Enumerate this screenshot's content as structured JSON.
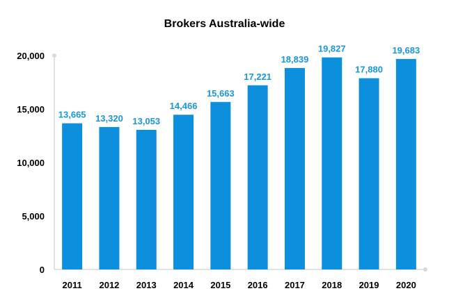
{
  "chart_data": {
    "type": "bar",
    "title": "Brokers Australia-wide",
    "xlabel": "",
    "ylabel": "",
    "categories": [
      "2011",
      "2012",
      "2013",
      "2014",
      "2015",
      "2016",
      "2017",
      "2018",
      "2019",
      "2020"
    ],
    "values": [
      13665,
      13320,
      13053,
      14466,
      15663,
      17221,
      18839,
      19827,
      17880,
      19683
    ],
    "data_labels": [
      "13,665",
      "13,320",
      "13,053",
      "14,466",
      "15,663",
      "17,221",
      "18,839",
      "19,827",
      "17,880",
      "19,683"
    ],
    "ylim": [
      0,
      20000
    ],
    "yticks": [
      0,
      5000,
      10000,
      15000,
      20000
    ],
    "ytick_labels": [
      "0",
      "5,000",
      "10,000",
      "15,000",
      "20,000"
    ],
    "grid": false,
    "legend": "none",
    "colors": {
      "bar": "#0c8fdc",
      "data_label": "#1a96dc",
      "axis": "#d9d9d9"
    }
  }
}
